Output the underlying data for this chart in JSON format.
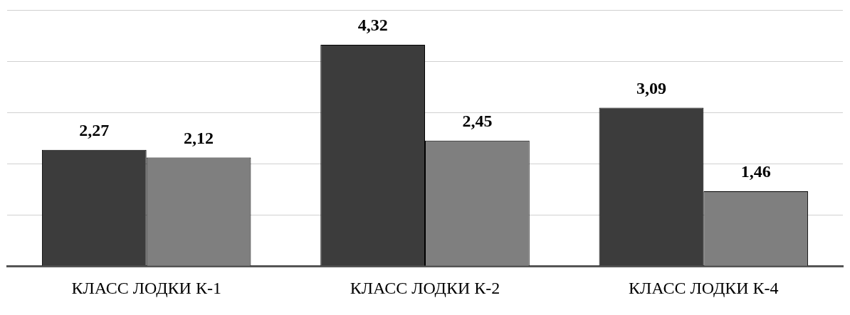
{
  "chart_data": {
    "type": "bar",
    "categories": [
      "КЛАСС ЛОДКИ К-1",
      "КЛАСС ЛОДКИ К-2",
      "КЛАСС ЛОДКИ К-4"
    ],
    "series": [
      {
        "color": "#3c3c3c",
        "values": [
          2.27,
          4.32,
          3.09
        ],
        "value_labels": [
          "2,27",
          "4,32",
          "3,09"
        ]
      },
      {
        "color": "#7f7f7f",
        "values": [
          2.12,
          2.45,
          1.46
        ],
        "value_labels": [
          "2,12",
          "2,45",
          "1,46"
        ]
      }
    ],
    "ylim": [
      0,
      5
    ],
    "yticks": [
      {
        "value": 0,
        "label": null
      },
      {
        "value": 1,
        "label": null
      },
      {
        "value": 2,
        "label": null
      },
      {
        "value": 3,
        "label": null
      },
      {
        "value": 4,
        "label": null
      },
      {
        "value": 5,
        "label": null
      }
    ],
    "grid": "y",
    "tick_labels": "x",
    "legend": false
  }
}
